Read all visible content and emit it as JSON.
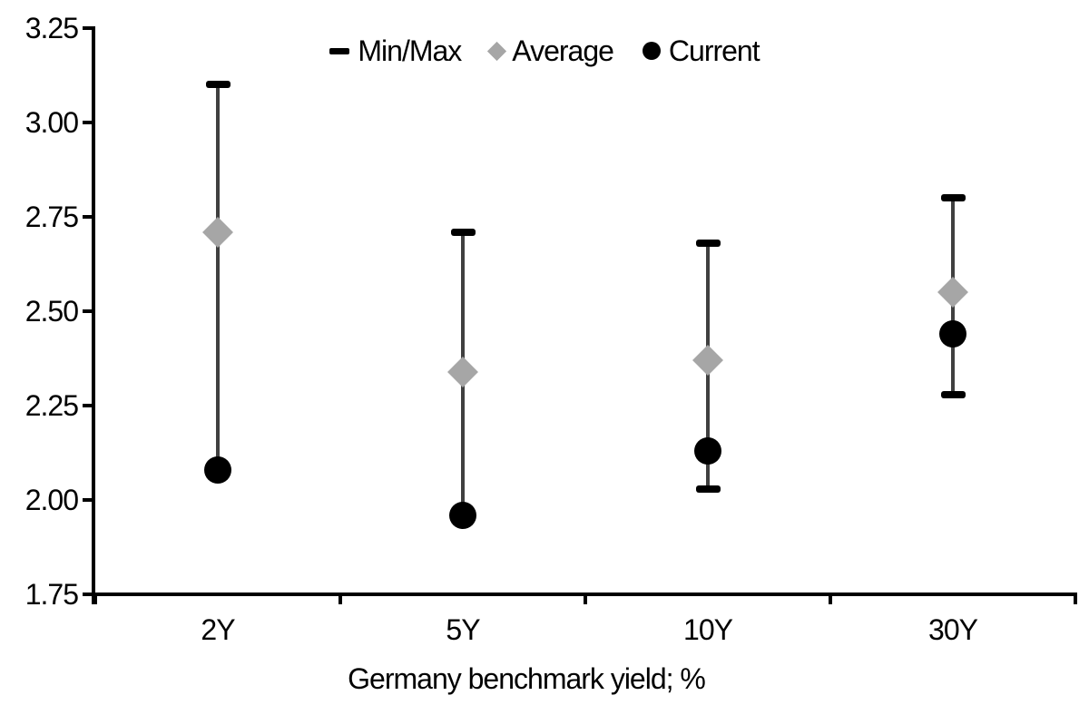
{
  "chart_data": {
    "type": "scatter",
    "subtype": "min-max-range-with-markers",
    "title": "",
    "xlabel": "Germany benchmark yield; %",
    "ylabel": "",
    "categories": [
      "2Y",
      "5Y",
      "10Y",
      "30Y"
    ],
    "y_ticks": [
      "3.25",
      "3.00",
      "2.75",
      "2.50",
      "2.25",
      "2.00",
      "1.75"
    ],
    "ylim": [
      1.75,
      3.25
    ],
    "grid": false,
    "legend_position": "top-center",
    "legend": [
      {
        "label": "Min/Max",
        "marker": "dash-icon"
      },
      {
        "label": "Average",
        "marker": "diamond-icon"
      },
      {
        "label": "Current",
        "marker": "circle-icon"
      }
    ],
    "series": [
      {
        "name": "Min/Max",
        "role": "range",
        "max": [
          3.1,
          2.71,
          2.68,
          2.8
        ],
        "min": [
          2.08,
          1.96,
          2.03,
          2.28
        ]
      },
      {
        "name": "Average",
        "role": "marker",
        "values": [
          2.71,
          2.34,
          2.37,
          2.55
        ]
      },
      {
        "name": "Current",
        "role": "marker",
        "values": [
          2.08,
          1.96,
          2.13,
          2.44
        ]
      }
    ],
    "colors": {
      "range_line": "#404040",
      "min_max_cap": "#000000",
      "average": "#A6A6A6",
      "current": "#000000",
      "axis": "#000000",
      "text": "#000000",
      "background": "#FFFFFF"
    }
  }
}
